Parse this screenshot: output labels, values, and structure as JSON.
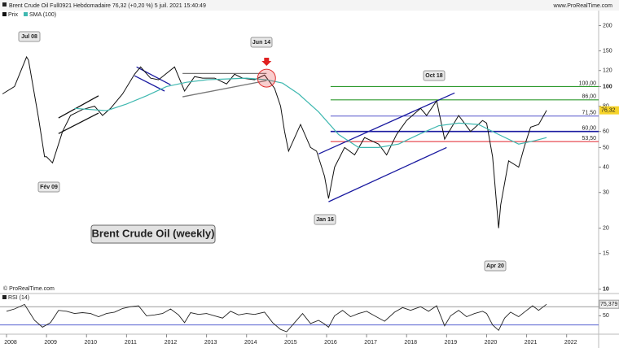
{
  "chart_data": {
    "type": "line",
    "title": "Brent Crude Oil Full0921 Hebdomadaire 76,32 (+0,20 %) 5 juil. 2021 15:40:49",
    "source": "www.ProRealTime.com",
    "copyright": "© ProRealTime.com",
    "log_scale": true,
    "grid": false,
    "xlim": [
      2008,
      2022.8
    ],
    "xticks": [
      2008,
      2009,
      2010,
      2011,
      2012,
      2013,
      2014,
      2015,
      2016,
      2017,
      2018,
      2019,
      2020,
      2021,
      2022
    ],
    "ylim": [
      9.6,
      235
    ],
    "yticks": [
      200,
      150,
      120,
      100,
      80,
      60,
      50,
      40,
      30,
      20,
      15,
      10
    ],
    "series": [
      {
        "name": "Prix",
        "color": "#111111",
        "x": [
          2007.9,
          2008.2,
          2008.5,
          2008.55,
          2008.8,
          2008.95,
          2009.0,
          2009.15,
          2009.4,
          2009.6,
          2009.9,
          2010.2,
          2010.4,
          2010.6,
          2010.9,
          2011.2,
          2011.35,
          2011.6,
          2011.8,
          2012.2,
          2012.45,
          2012.7,
          2012.9,
          2013.2,
          2013.5,
          2013.7,
          2013.9,
          2014.2,
          2014.45,
          2014.7,
          2014.85,
          2014.95,
          2015.05,
          2015.35,
          2015.6,
          2015.75,
          2015.95,
          2016.05,
          2016.2,
          2016.45,
          2016.7,
          2016.95,
          2017.3,
          2017.5,
          2017.75,
          2018.0,
          2018.35,
          2018.5,
          2018.75,
          2018.95,
          2019.3,
          2019.6,
          2019.9,
          2020.0,
          2020.15,
          2020.3,
          2020.35,
          2020.55,
          2020.8,
          2020.95,
          2021.1,
          2021.3,
          2021.5
        ],
        "values": [
          92,
          100,
          140,
          135,
          70,
          45,
          45,
          42,
          60,
          72,
          77,
          80,
          72,
          78,
          92,
          115,
          125,
          110,
          108,
          125,
          95,
          112,
          110,
          110,
          103,
          115,
          110,
          108,
          114,
          98,
          80,
          60,
          48,
          65,
          50,
          48,
          36,
          28,
          40,
          50,
          46,
          56,
          52,
          46,
          58,
          68,
          78,
          72,
          85,
          55,
          72,
          60,
          68,
          66,
          45,
          20,
          26,
          43,
          40,
          51,
          63,
          65,
          76.32
        ],
        "last_label": "76,32"
      },
      {
        "name": "SMA (100)",
        "color": "#3fb8b0",
        "x": [
          2009.7,
          2010.5,
          2011.0,
          2011.5,
          2012.0,
          2012.5,
          2013.0,
          2013.5,
          2014.0,
          2014.5,
          2014.9,
          2015.3,
          2015.8,
          2016.3,
          2016.8,
          2017.3,
          2017.8,
          2018.3,
          2018.8,
          2019.3,
          2019.8,
          2020.3,
          2020.8,
          2021.2,
          2021.5
        ],
        "values": [
          78,
          76,
          82,
          90,
          100,
          105,
          108,
          109,
          110,
          108,
          104,
          92,
          75,
          58,
          50,
          50,
          52,
          58,
          64,
          66,
          65,
          58,
          52,
          54,
          56
        ]
      }
    ],
    "levels": [
      {
        "value": 100,
        "label": "100,00",
        "color": "#2e9a2e"
      },
      {
        "value": 86,
        "label": "86,00",
        "color": "#2e9a2e"
      },
      {
        "value": 71.5,
        "label": "71,50",
        "color": "#5555cc"
      },
      {
        "value": 60,
        "label": "60,00",
        "color": "#1a1aa0"
      },
      {
        "value": 53.5,
        "label": "53,50",
        "color": "#e0202a"
      }
    ],
    "trendlines": [
      {
        "x": [
          2009.3,
          2010.3
        ],
        "y": [
          70,
          90
        ],
        "color": "#111111"
      },
      {
        "x": [
          2009.3,
          2010.3
        ],
        "y": [
          58.6,
          74
        ],
        "color": "#111111"
      },
      {
        "x": [
          2011.25,
          2012.1
        ],
        "y": [
          125,
          102
        ],
        "color": "#1a1aa0"
      },
      {
        "x": [
          2011.2,
          2011.95
        ],
        "y": [
          113,
          95
        ],
        "color": "#1a1aa0"
      },
      {
        "x": [
          2012.4,
          2014.5
        ],
        "y": [
          116,
          116
        ],
        "color": "#777777"
      },
      {
        "x": [
          2012.4,
          2014.5
        ],
        "y": [
          89,
          107
        ],
        "color": "#777777"
      },
      {
        "x": [
          2016.05,
          2019.0
        ],
        "y": [
          27,
          50
        ],
        "color": "#1a1aa0"
      },
      {
        "x": [
          2015.8,
          2019.2
        ],
        "y": [
          46.5,
          93
        ],
        "color": "#1a1aa0"
      }
    ],
    "annotations": [
      "Jul 08",
      "Fév 09",
      "Jun 14",
      "Jan 16",
      "Oct 18",
      "Apr 20"
    ],
    "label": "Brent Crude Oil (weekly)",
    "rsi": {
      "name": "RSI (14)",
      "color": "#222222",
      "ylim": [
        15,
        90
      ],
      "yticks": [
        50
      ],
      "levels": [
        {
          "value": 70,
          "color": "#999999"
        },
        {
          "value": 30,
          "color": "#5560d0"
        }
      ],
      "x": [
        2008.0,
        2008.2,
        2008.45,
        2008.7,
        2008.9,
        2009.1,
        2009.3,
        2009.5,
        2009.7,
        2009.9,
        2010.1,
        2010.3,
        2010.5,
        2010.7,
        2010.9,
        2011.1,
        2011.3,
        2011.5,
        2011.7,
        2011.9,
        2012.1,
        2012.3,
        2012.45,
        2012.6,
        2012.8,
        2013.0,
        2013.2,
        2013.4,
        2013.6,
        2013.8,
        2014.0,
        2014.2,
        2014.45,
        2014.65,
        2014.85,
        2015.0,
        2015.2,
        2015.4,
        2015.6,
        2015.8,
        2015.95,
        2016.05,
        2016.2,
        2016.4,
        2016.6,
        2016.8,
        2017.0,
        2017.2,
        2017.45,
        2017.7,
        2017.9,
        2018.1,
        2018.35,
        2018.55,
        2018.75,
        2018.95,
        2019.1,
        2019.3,
        2019.5,
        2019.7,
        2019.9,
        2020.0,
        2020.15,
        2020.3,
        2020.45,
        2020.6,
        2020.8,
        2021.0,
        2021.15,
        2021.3,
        2021.5
      ],
      "values": [
        60,
        65,
        75,
        40,
        25,
        35,
        62,
        60,
        55,
        57,
        55,
        48,
        55,
        58,
        66,
        70,
        72,
        50,
        52,
        55,
        65,
        52,
        35,
        57,
        53,
        55,
        50,
        45,
        60,
        52,
        55,
        53,
        58,
        35,
        20,
        15,
        35,
        55,
        33,
        40,
        32,
        25,
        50,
        62,
        48,
        55,
        60,
        50,
        38,
        58,
        68,
        62,
        70,
        60,
        72,
        28,
        50,
        62,
        48,
        55,
        60,
        55,
        30,
        18,
        45,
        58,
        48,
        62,
        72,
        62,
        75.379
      ],
      "last_label": "75,379"
    }
  }
}
